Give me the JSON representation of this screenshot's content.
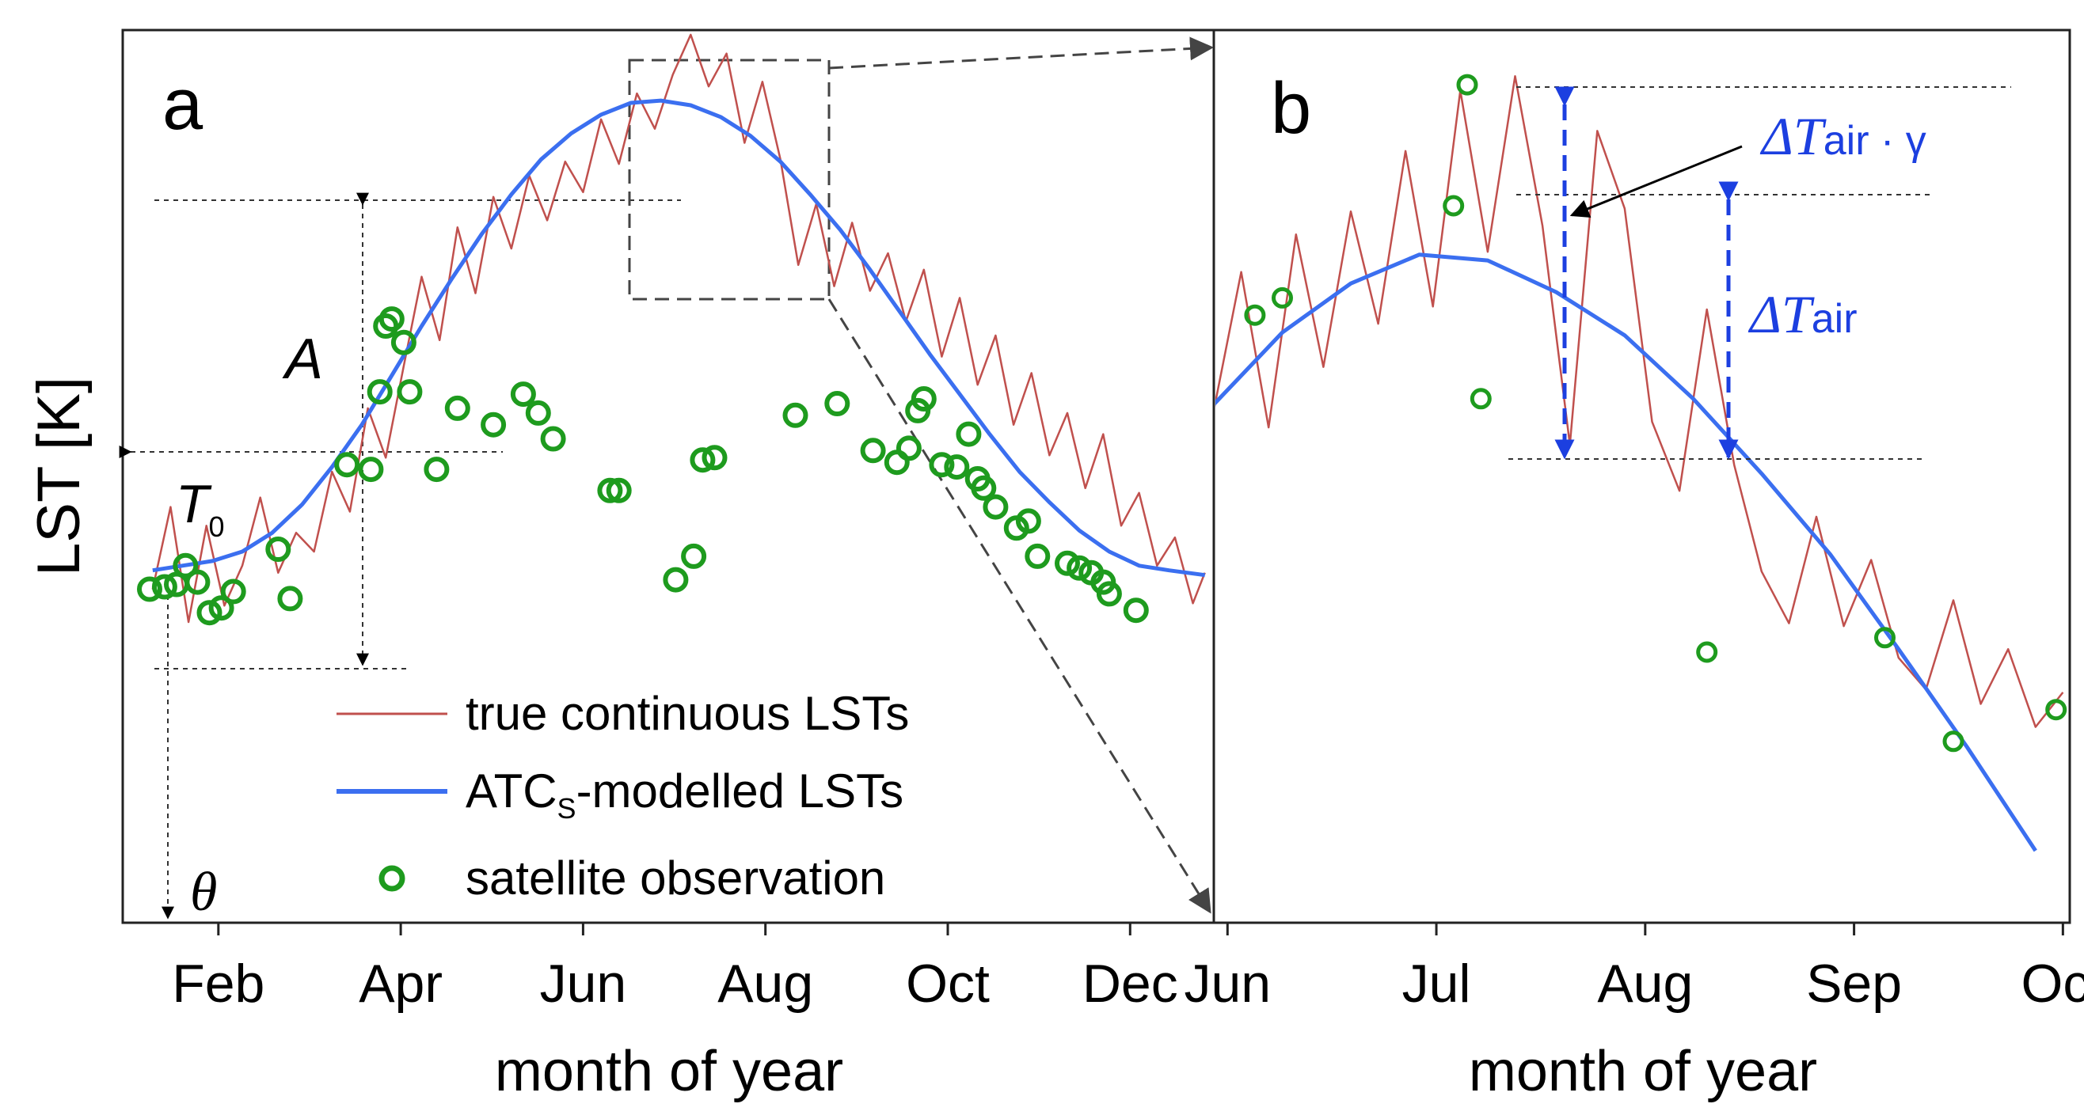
{
  "figure": {
    "y_axis_label": "LST [K]"
  },
  "chart_data": [
    {
      "panel": "a",
      "type": "line",
      "xlabel": "month of year",
      "ylabel": "LST [K]",
      "x_ticks": [
        "Feb",
        "Apr",
        "Jun",
        "Aug",
        "Oct",
        "Dec"
      ],
      "xlim": [
        0,
        365
      ],
      "ylim": [
        -26,
        12
      ],
      "grid": false,
      "legend_placement": "bottom-center",
      "series": [
        {
          "name": "true continuous LSTs",
          "color": "#c0504d",
          "x": [
            10,
            16,
            22,
            28,
            34,
            40,
            46,
            52,
            58,
            64,
            70,
            76,
            82,
            88,
            94,
            100,
            106,
            112,
            118,
            124,
            130,
            136,
            142,
            148,
            154,
            160,
            166,
            172,
            178,
            184,
            190,
            196,
            202,
            208,
            214,
            220,
            226,
            232,
            238,
            244,
            250,
            256,
            262,
            268,
            274,
            280,
            286,
            292,
            298,
            304,
            310,
            316,
            322,
            328,
            334,
            340,
            346,
            352,
            358,
            362
          ],
          "y": [
            -11.8,
            -8.3,
            -13.2,
            -9.1,
            -12.5,
            -10.8,
            -7.9,
            -11.1,
            -9.4,
            -10.2,
            -6.8,
            -8.5,
            -4.1,
            -6.2,
            -2.3,
            1.5,
            -1.2,
            3.6,
            0.8,
            4.9,
            2.7,
            5.8,
            3.9,
            6.4,
            5.1,
            8.2,
            6.3,
            9.3,
            7.8,
            10.1,
            11.8,
            9.6,
            11.0,
            7.2,
            9.8,
            6.5,
            2.0,
            4.6,
            1.1,
            3.8,
            0.9,
            2.5,
            -0.4,
            1.8,
            -1.9,
            0.6,
            -3.1,
            -1.0,
            -4.8,
            -2.6,
            -6.1,
            -4.3,
            -7.5,
            -5.2,
            -9.1,
            -7.7,
            -10.8,
            -9.6,
            -12.4,
            -11.1
          ]
        },
        {
          "name": "ATCS-modelled LSTs",
          "color": "#3b6ff0",
          "x": [
            10,
            20,
            30,
            40,
            50,
            60,
            70,
            80,
            90,
            100,
            110,
            120,
            130,
            140,
            150,
            160,
            170,
            180,
            190,
            200,
            210,
            220,
            230,
            240,
            250,
            260,
            270,
            280,
            290,
            300,
            310,
            320,
            330,
            340,
            350,
            362
          ],
          "y": [
            -11.0,
            -10.8,
            -10.6,
            -10.2,
            -9.4,
            -8.2,
            -6.6,
            -4.8,
            -2.7,
            -0.6,
            1.4,
            3.3,
            5.0,
            6.5,
            7.6,
            8.4,
            8.9,
            9.0,
            8.8,
            8.3,
            7.5,
            6.4,
            5.0,
            3.5,
            1.8,
            0.0,
            -1.8,
            -3.5,
            -5.2,
            -6.8,
            -8.1,
            -9.3,
            -10.2,
            -10.8,
            -11.0,
            -11.2
          ]
        },
        {
          "name": "satellite observation",
          "color": "#1e9b1e",
          "type": "scatter",
          "x": [
            9,
            14,
            18,
            21,
            25,
            29,
            33,
            37,
            52,
            56,
            75,
            83,
            86,
            88,
            90,
            94,
            96,
            105,
            112,
            124,
            134,
            139,
            144,
            163,
            166,
            185,
            191,
            194,
            198,
            225,
            239,
            251,
            259,
            263,
            266,
            268,
            274,
            279,
            283,
            286,
            288,
            292,
            299,
            303,
            306,
            316,
            320,
            324,
            328,
            330,
            339
          ],
          "y": [
            -11.8,
            -11.7,
            -11.6,
            -10.8,
            -11.5,
            -12.8,
            -12.6,
            -11.9,
            -10.1,
            -12.2,
            -6.5,
            -6.7,
            -3.4,
            -0.6,
            -0.3,
            -1.3,
            -3.4,
            -6.7,
            -4.1,
            -4.8,
            -3.5,
            -4.3,
            -5.4,
            -7.6,
            -7.6,
            -11.4,
            -10.4,
            -6.3,
            -6.2,
            -4.4,
            -3.9,
            -5.9,
            -6.4,
            -5.8,
            -4.2,
            -3.7,
            -6.5,
            -6.6,
            -5.2,
            -7.1,
            -7.5,
            -8.3,
            -9.2,
            -8.9,
            -10.4,
            -10.7,
            -10.9,
            -11.1,
            -11.5,
            -12.0,
            -12.7
          ]
        }
      ],
      "annotations": [
        "A",
        "T0",
        "θ"
      ]
    },
    {
      "panel": "b",
      "type": "line",
      "xlabel": "month of year",
      "x_ticks": [
        "Jun",
        "Jul",
        "Aug",
        "Sep",
        "Oct"
      ],
      "xlim": [
        150,
        275
      ],
      "grid": false,
      "series": [
        {
          "name": "true continuous LSTs",
          "color": "#c0504d",
          "x": [
            150,
            154,
            158,
            162,
            166,
            170,
            174,
            178,
            182,
            186,
            190,
            194,
            198,
            202,
            206,
            210,
            214,
            218,
            222,
            226,
            230,
            234,
            238,
            242,
            246,
            250,
            254,
            258,
            262,
            266,
            270,
            274
          ],
          "y": [
            -8.2,
            -3.4,
            -8.8,
            -2.1,
            -6.7,
            -1.3,
            -5.2,
            0.8,
            -4.6,
            2.9,
            -2.7,
            3.4,
            -1.8,
            -9.4,
            1.5,
            -1.2,
            -8.6,
            -11.0,
            -4.7,
            -10.1,
            -13.8,
            -15.6,
            -11.9,
            -15.7,
            -13.4,
            -16.8,
            -17.9,
            -14.8,
            -18.4,
            -16.5,
            -19.2,
            -18.0
          ]
        },
        {
          "name": "ATCS-modelled LSTs",
          "color": "#3b6ff0",
          "x": [
            150,
            160,
            170,
            180,
            190,
            200,
            210,
            220,
            230,
            240,
            250,
            260,
            270
          ],
          "y": [
            -8.0,
            -5.5,
            -3.8,
            -2.8,
            -3.0,
            -4.1,
            -5.6,
            -7.8,
            -10.4,
            -13.2,
            -16.5,
            -19.9,
            -23.5
          ]
        },
        {
          "name": "satellite observation",
          "color": "#1e9b1e",
          "type": "scatter",
          "x": [
            156,
            160,
            185,
            187,
            189,
            222,
            248,
            258,
            273
          ],
          "y": [
            -4.9,
            -4.3,
            -1.1,
            3.1,
            -7.8,
            -16.6,
            -16.1,
            -19.7,
            -18.6
          ]
        }
      ],
      "annotations": [
        "ΔTair · γ",
        "ΔTair"
      ]
    }
  ],
  "labels": {
    "panel_a": "a",
    "panel_b": "b",
    "A": "A",
    "T": "T",
    "T_sub": "0",
    "theta": "θ",
    "delta_gamma_main": "ΔT",
    "delta_gamma_sub": "air · γ",
    "delta_main": "ΔT",
    "delta_sub": "air",
    "legend_true": "true continuous LSTs",
    "legend_atc_main": "ATC",
    "legend_atc_sub": "S",
    "legend_atc_rest": "-modelled LSTs",
    "legend_sat": "satellite observation"
  }
}
